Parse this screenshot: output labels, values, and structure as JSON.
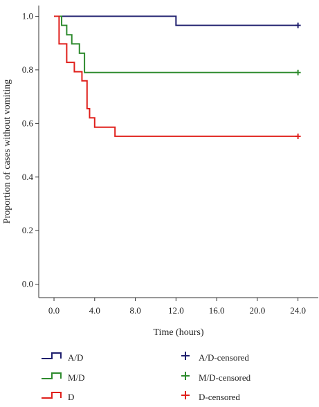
{
  "chart_data": {
    "type": "line",
    "subtype": "kaplan-meier",
    "title": "",
    "xlabel": "Time (hours)",
    "ylabel": "Proportion of cases without vomiting",
    "xlim": [
      -1.5,
      26.0
    ],
    "ylim": [
      -0.05,
      1.04
    ],
    "xticks": [
      0,
      4,
      8,
      12,
      16,
      20,
      24
    ],
    "xtick_labels": [
      "0.0",
      "4.0",
      "8.0",
      "12.0",
      "16.0",
      "20.0",
      "24.0"
    ],
    "yticks": [
      0,
      0.2,
      0.4,
      0.6,
      0.8,
      1.0
    ],
    "ytick_labels": [
      "0.0",
      "0.2",
      "0.4",
      "0.6",
      "0.8",
      "1.0"
    ],
    "grid": false,
    "legend_position": "bottom",
    "series": [
      {
        "name": "A/D",
        "censored_label": "A/D-censored",
        "color": "#1f1f6e",
        "steps": [
          [
            0,
            1.0
          ],
          [
            12,
            0.966
          ]
        ],
        "censored": [
          [
            24,
            0.966
          ]
        ]
      },
      {
        "name": "M/D",
        "censored_label": "M/D-censored",
        "color": "#2e8b2e",
        "steps": [
          [
            0,
            1.0
          ],
          [
            0.75,
            0.966
          ],
          [
            1.25,
            0.931
          ],
          [
            1.75,
            0.897
          ],
          [
            2.5,
            0.862
          ],
          [
            3.0,
            0.79
          ]
        ],
        "censored": [
          [
            24,
            0.79
          ]
        ]
      },
      {
        "name": "D",
        "censored_label": "D-censored",
        "color": "#e0201c",
        "steps": [
          [
            0,
            1.0
          ],
          [
            0.5,
            0.897
          ],
          [
            1.25,
            0.828
          ],
          [
            2.0,
            0.793
          ],
          [
            2.75,
            0.759
          ],
          [
            3.25,
            0.655
          ],
          [
            3.5,
            0.621
          ],
          [
            4.0,
            0.586
          ],
          [
            6.0,
            0.552
          ]
        ],
        "censored": [
          [
            24,
            0.552
          ]
        ]
      }
    ]
  }
}
